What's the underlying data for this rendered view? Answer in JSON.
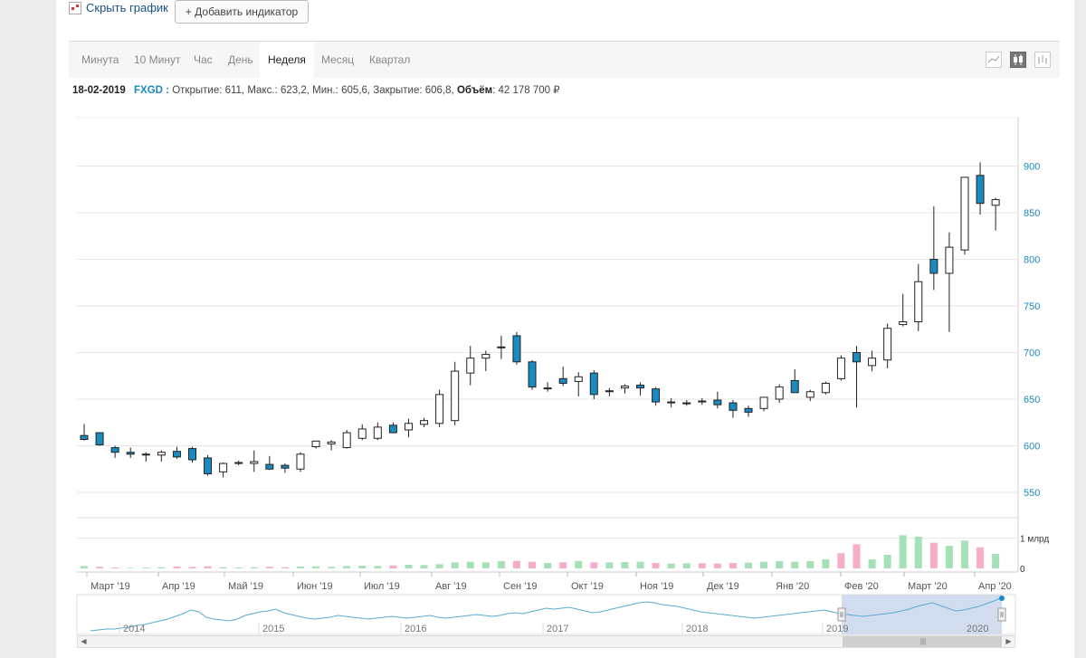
{
  "toolbar": {
    "hide_chart_label": "Скрыть график",
    "add_indicator_label": "+ Добавить индикатор"
  },
  "tabs": [
    {
      "label": "Минута",
      "active": false
    },
    {
      "label": "10 Минут",
      "active": false
    },
    {
      "label": "Час",
      "active": false
    },
    {
      "label": "День",
      "active": false
    },
    {
      "label": "Неделя",
      "active": true
    },
    {
      "label": "Месяц",
      "active": false
    },
    {
      "label": "Квартал",
      "active": false
    }
  ],
  "chart_type_buttons": [
    {
      "icon": "line-chart-icon",
      "active": false
    },
    {
      "icon": "candlestick-icon",
      "active": true
    },
    {
      "icon": "ohlc-bars-icon",
      "active": false
    }
  ],
  "info": {
    "date": "18-02-2019",
    "ticker": "FXGD :",
    "open": "Открытие: 611,",
    "high": "Макс.: 623,2,",
    "low": "Мин.: 605,6,",
    "close": "Закрытие: 606,8,",
    "volume_label": "Объём",
    "volume_value": ": 42 178 700 ₽"
  },
  "colors": {
    "up": "#ffffff",
    "down": "#1a8ac2",
    "vol_up": "#a6e0b6",
    "vol_down": "#f5aec6",
    "axis_text": "#1a8ac2",
    "navigator_line": "#5aaad3",
    "navigator_selection": "#c9d6ec"
  },
  "chart_data": {
    "type": "candlestick",
    "y_axis": {
      "min": 550,
      "max": 900,
      "ticks": [
        "550",
        "600",
        "650",
        "700",
        "750",
        "800",
        "850",
        "900"
      ]
    },
    "x_labels": [
      "Март '19",
      "Апр '19",
      "Май '19",
      "Июн '19",
      "Июл '19",
      "Авг '19",
      "Сен '19",
      "Окт '19",
      "Ноя '19",
      "Дек '19",
      "Янв '20",
      "Фев '20",
      "Март '20",
      "Апр '20"
    ],
    "volume_axis": {
      "ticks": [
        "0",
        "1 млрд"
      ],
      "max": 1.5
    },
    "candles": [
      [
        611,
        623.2,
        605.6,
        606.8
      ],
      [
        614,
        614,
        600,
        601
      ],
      [
        598,
        600,
        587,
        593
      ],
      [
        593,
        598,
        587,
        591
      ],
      [
        591,
        593,
        583,
        591
      ],
      [
        590,
        595,
        583,
        593
      ],
      [
        594,
        599,
        586,
        588
      ],
      [
        597,
        599,
        582,
        585
      ],
      [
        587,
        590,
        568,
        570
      ],
      [
        572,
        582,
        566,
        581
      ],
      [
        581,
        584,
        579,
        582
      ],
      [
        581,
        595,
        572,
        583
      ],
      [
        580,
        589,
        574,
        575
      ],
      [
        579,
        581,
        571,
        576
      ],
      [
        575,
        593,
        572,
        591
      ],
      [
        599,
        605,
        597,
        605
      ],
      [
        602,
        606,
        595,
        604
      ],
      [
        598,
        617,
        597,
        614
      ],
      [
        608,
        623,
        606,
        618
      ],
      [
        608,
        625,
        606,
        620
      ],
      [
        622,
        625,
        615,
        614
      ],
      [
        617,
        629,
        609,
        624
      ],
      [
        623,
        630,
        620,
        627
      ],
      [
        624,
        660,
        620,
        655
      ],
      [
        627,
        690,
        622,
        680
      ],
      [
        678,
        707,
        665,
        694
      ],
      [
        694,
        702,
        680,
        698
      ],
      [
        705,
        718,
        693,
        706
      ],
      [
        718,
        722,
        687,
        690
      ],
      [
        690,
        692,
        660,
        663
      ],
      [
        662,
        668,
        658,
        662
      ],
      [
        672,
        685,
        664,
        667
      ],
      [
        669,
        679,
        653,
        674
      ],
      [
        678,
        681,
        650,
        655
      ],
      [
        659,
        662,
        653,
        659
      ],
      [
        662,
        666,
        656,
        664
      ],
      [
        665,
        668,
        654,
        662
      ],
      [
        661,
        663,
        643,
        647
      ],
      [
        646,
        651,
        641,
        647
      ],
      [
        646,
        649,
        643,
        645
      ],
      [
        647,
        651,
        644,
        648
      ],
      [
        649,
        658,
        640,
        644
      ],
      [
        646,
        649,
        630,
        638
      ],
      [
        640,
        643,
        631,
        636
      ],
      [
        640,
        652,
        637,
        652
      ],
      [
        650,
        666,
        646,
        663
      ],
      [
        670,
        682,
        658,
        657
      ],
      [
        652,
        660,
        648,
        658
      ],
      [
        657,
        669,
        655,
        667
      ],
      [
        672,
        697,
        670,
        694
      ],
      [
        700,
        707,
        641,
        690
      ],
      [
        686,
        702,
        680,
        694
      ],
      [
        692,
        731,
        683,
        726
      ],
      [
        730,
        763,
        728,
        733
      ],
      [
        733,
        795,
        723,
        776
      ],
      [
        800,
        857,
        767,
        785
      ],
      [
        785,
        829,
        722,
        813
      ],
      [
        810,
        888,
        805,
        888
      ],
      [
        890,
        904,
        848,
        860
      ],
      [
        858,
        866,
        831,
        864
      ]
    ],
    "volumes": [
      0.08,
      0.05,
      0.03,
      0.02,
      0.03,
      0.04,
      0.06,
      0.05,
      0.07,
      0.04,
      0.03,
      0.04,
      0.05,
      0.04,
      0.06,
      0.07,
      0.05,
      0.08,
      0.09,
      0.08,
      0.1,
      0.12,
      0.11,
      0.14,
      0.2,
      0.22,
      0.2,
      0.24,
      0.25,
      0.22,
      0.18,
      0.2,
      0.25,
      0.2,
      0.2,
      0.21,
      0.22,
      0.18,
      0.16,
      0.17,
      0.17,
      0.16,
      0.18,
      0.19,
      0.22,
      0.24,
      0.22,
      0.24,
      0.3,
      0.5,
      0.8,
      0.3,
      0.45,
      1.1,
      1.05,
      0.85,
      0.75,
      0.92,
      0.7,
      0.48
    ],
    "vol_down_indices": [
      1,
      2,
      6,
      7,
      8,
      12,
      13,
      20,
      28,
      29,
      31,
      33,
      37,
      40,
      41,
      42,
      49,
      50,
      55,
      58
    ]
  },
  "navigator": {
    "year_labels": [
      "2014",
      "2015",
      "2016",
      "2017",
      "2018",
      "2019",
      "2020"
    ]
  }
}
